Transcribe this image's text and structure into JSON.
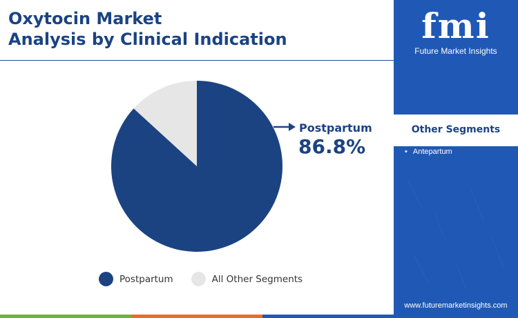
{
  "header": {
    "title_line1": "Oxytocin Market",
    "title_line2": "Analysis by Clinical Indication"
  },
  "chart_data": {
    "type": "pie",
    "title": "Oxytocin Market Analysis by Clinical Indication",
    "slices": [
      {
        "label": "Postpartum",
        "value": 86.8,
        "color": "#1b4382"
      },
      {
        "label": "All Other Segments",
        "value": 13.2,
        "color": "#e6e6e6"
      }
    ],
    "callout": {
      "label": "Postpartum",
      "value_text": "86.8%"
    },
    "legend": [
      "Postpartum",
      "All Other Segments"
    ],
    "legend_position": "bottom"
  },
  "sidebar": {
    "logo_text": "fmi",
    "logo_subtitle": "Future Market Insights",
    "other_segments_heading": "Other Segments",
    "other_segments": [
      "Antepartum"
    ],
    "website": "www.futuremarketinsights.com",
    "background_color": "#1f59b5"
  },
  "footer": {
    "bar_colors": [
      "#6db33f",
      "#ee6a2c",
      "#1f59b5"
    ]
  },
  "icons": [
    "arrow-right-icon",
    "fmi-logo"
  ]
}
